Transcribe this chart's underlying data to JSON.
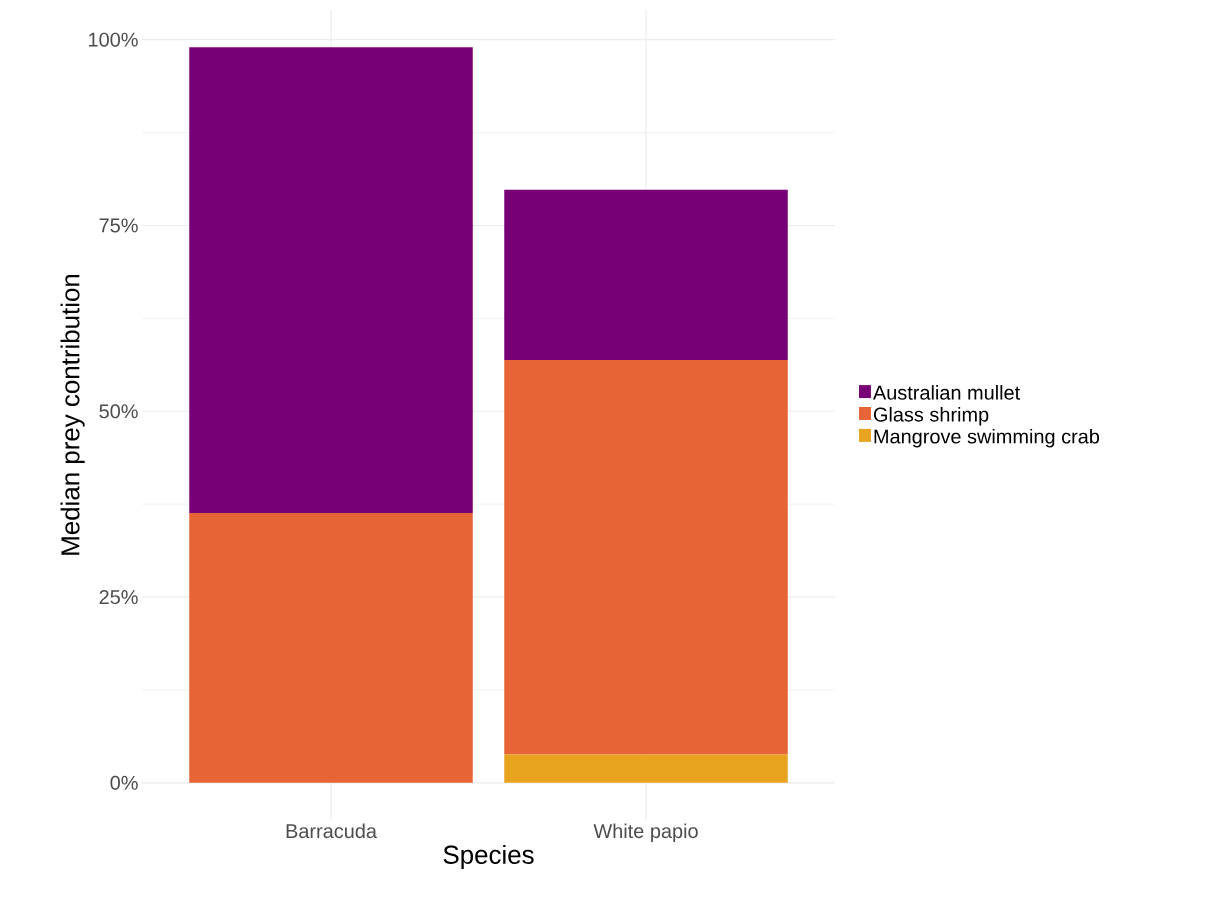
{
  "chart_data": {
    "type": "bar",
    "stacked": true,
    "xlabel": "Species",
    "ylabel": "Median prey contribution",
    "categories": [
      "Barracuda",
      "White papio"
    ],
    "series": [
      {
        "name": "Mangrove swimming crab",
        "color": "#e8a31f",
        "values": [
          0,
          3.8
        ]
      },
      {
        "name": "Glass shrimp",
        "color": "#e66435",
        "values": [
          36.3,
          53.1
        ]
      },
      {
        "name": "Australian mullet",
        "color": "#770077",
        "values": [
          62.7,
          22.9
        ]
      }
    ],
    "ylim": [
      -5,
      104
    ],
    "yticks": [
      {
        "value": 0,
        "label": "0%"
      },
      {
        "value": 25,
        "label": "25%"
      },
      {
        "value": 50,
        "label": "50%"
      },
      {
        "value": 75,
        "label": "75%"
      },
      {
        "value": 100,
        "label": "100%"
      }
    ],
    "grid": true,
    "legend": "right"
  }
}
